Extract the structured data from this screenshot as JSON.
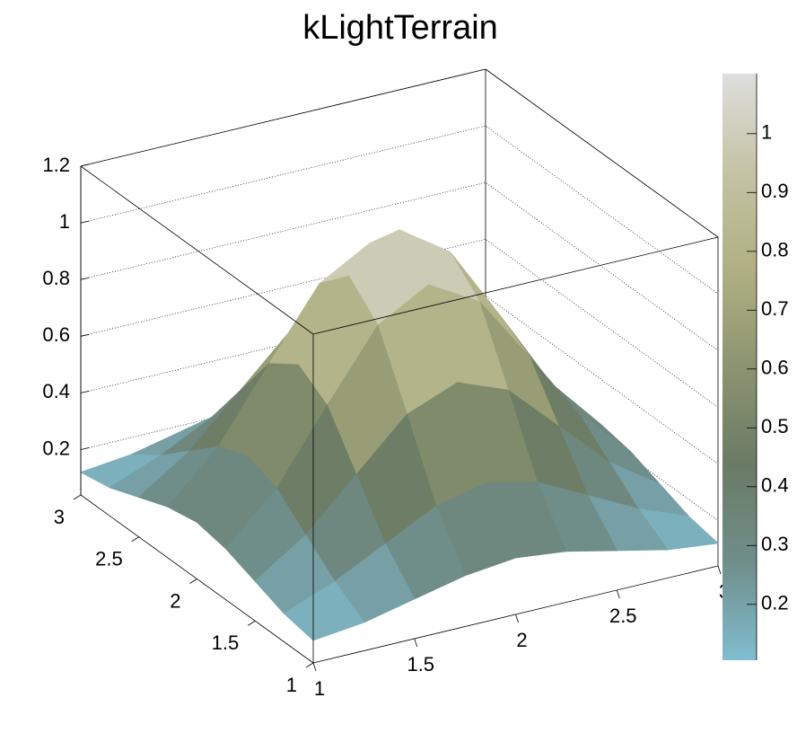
{
  "chart_data": {
    "type": "surface",
    "title": "kLightTerrain",
    "x": [
      1,
      1.25,
      1.5,
      1.75,
      2,
      2.25,
      2.5,
      2.75,
      3
    ],
    "y": [
      1,
      1.25,
      1.5,
      1.75,
      2,
      2.25,
      2.5,
      2.75,
      3
    ],
    "z": [
      [
        0.12,
        0.14,
        0.18,
        0.22,
        0.24,
        0.22,
        0.18,
        0.14,
        0.12
      ],
      [
        0.14,
        0.21,
        0.3,
        0.39,
        0.43,
        0.39,
        0.3,
        0.21,
        0.14
      ],
      [
        0.18,
        0.3,
        0.47,
        0.64,
        0.71,
        0.64,
        0.47,
        0.3,
        0.18
      ],
      [
        0.22,
        0.39,
        0.64,
        0.88,
        0.98,
        0.88,
        0.64,
        0.39,
        0.22
      ],
      [
        0.24,
        0.43,
        0.71,
        0.98,
        1.1,
        0.98,
        0.71,
        0.43,
        0.24
      ],
      [
        0.22,
        0.39,
        0.64,
        0.88,
        0.98,
        0.88,
        0.64,
        0.39,
        0.22
      ],
      [
        0.18,
        0.3,
        0.47,
        0.64,
        0.71,
        0.64,
        0.47,
        0.3,
        0.18
      ],
      [
        0.14,
        0.21,
        0.3,
        0.39,
        0.43,
        0.39,
        0.3,
        0.21,
        0.14
      ],
      [
        0.12,
        0.14,
        0.18,
        0.22,
        0.24,
        0.22,
        0.18,
        0.14,
        0.12
      ]
    ],
    "xlim": [
      1,
      3
    ],
    "ylim": [
      1,
      3
    ],
    "zlim": [
      0.04,
      1.2
    ],
    "xticks": [
      1,
      1.5,
      2,
      2.5,
      3
    ],
    "yticks": [
      1,
      1.5,
      2,
      2.5,
      3
    ],
    "zticks": [
      0.2,
      0.4,
      0.6,
      0.8,
      1,
      1.2
    ],
    "grid": true,
    "colorbar": {
      "lim": [
        0.105,
        1.102
      ],
      "ticks": [
        0.2,
        0.3,
        0.4,
        0.5,
        0.6,
        0.7,
        0.8,
        0.9,
        1
      ]
    },
    "palette": [
      "#80bdd0",
      "#6f8e8a",
      "#6b7b65",
      "#8c9470",
      "#b0b083",
      "#c4c3a4",
      "#dedede"
    ]
  }
}
